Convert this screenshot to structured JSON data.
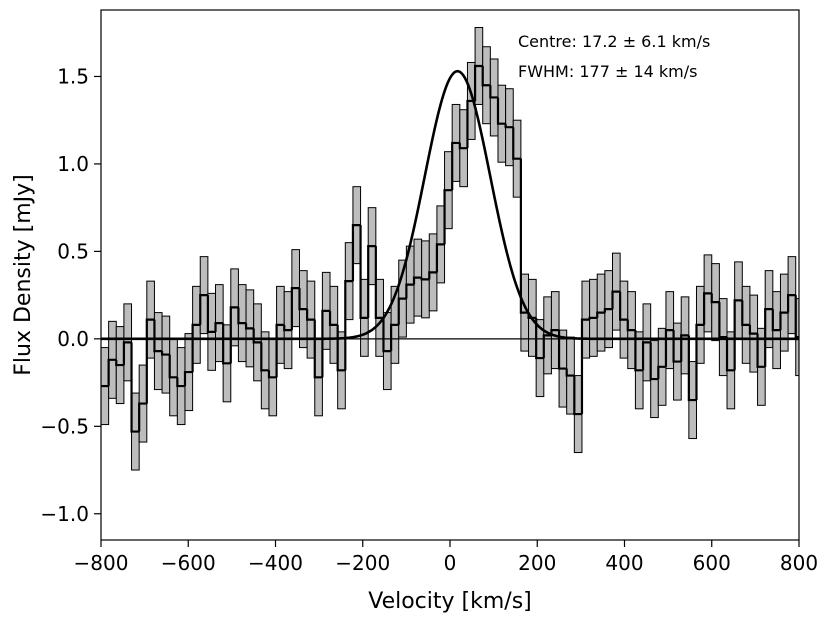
{
  "chart_data": {
    "type": "line",
    "xlabel": "Velocity [km/s]",
    "ylabel": "Flux Density [mJy]",
    "xlim": [
      -800,
      800
    ],
    "ylim": [
      -1.15,
      1.88
    ],
    "xticks": [
      -800,
      -600,
      -400,
      -200,
      0,
      200,
      400,
      600,
      800
    ],
    "yticks": [
      -1.0,
      -0.5,
      0.0,
      0.5,
      1.0,
      1.5
    ],
    "xtick_labels": [
      "−800",
      "−600",
      "−400",
      "−200",
      "0",
      "200",
      "400",
      "600",
      "800"
    ],
    "ytick_labels": [
      "−1.0",
      "−0.5",
      "0.0",
      "0.5",
      "1.0",
      "1.5"
    ],
    "annotations": [
      "Centre: 17.2 ± 6.1 km/s",
      "FWHM: 177 ± 14 km/s"
    ],
    "zero_line": 0.0,
    "series": [
      {
        "name": "spectrum",
        "style": "step",
        "x_start": -800,
        "bin_width": 17.5,
        "values": [
          -0.27,
          -0.12,
          -0.15,
          -0.02,
          -0.53,
          -0.37,
          0.11,
          -0.07,
          -0.09,
          -0.22,
          -0.27,
          -0.19,
          0.08,
          0.25,
          0.04,
          0.09,
          -0.14,
          0.18,
          0.09,
          0.06,
          -0.02,
          -0.18,
          -0.22,
          0.08,
          0.05,
          0.29,
          0.17,
          0.11,
          -0.22,
          0.16,
          0.08,
          -0.18,
          0.33,
          0.65,
          0.12,
          0.53,
          0.12,
          -0.07,
          0.08,
          0.23,
          0.31,
          0.35,
          0.34,
          0.38,
          0.54,
          0.85,
          1.12,
          1.09,
          1.36,
          1.56,
          1.45,
          1.38,
          1.23,
          1.21,
          1.03,
          0.15,
          0.12,
          -0.11,
          0.02,
          0.05,
          -0.17,
          -0.21,
          -0.43,
          0.11,
          0.12,
          0.15,
          0.17,
          0.27,
          0.11,
          0.05,
          -0.18,
          -0.02,
          -0.23,
          -0.16,
          0.05,
          -0.13,
          0.02,
          -0.35,
          0.08,
          0.26,
          0.21,
          0.01,
          -0.18,
          0.22,
          0.08,
          0.03,
          -0.16,
          0.17,
          0.05,
          0.15,
          0.25,
          0.01
        ]
      },
      {
        "name": "uncertainty",
        "style": "step-band",
        "half_width": 0.22
      },
      {
        "name": "gaussian_fit",
        "style": "line",
        "amplitude": 1.53,
        "centre": 17.2,
        "fwhm": 177
      }
    ]
  }
}
